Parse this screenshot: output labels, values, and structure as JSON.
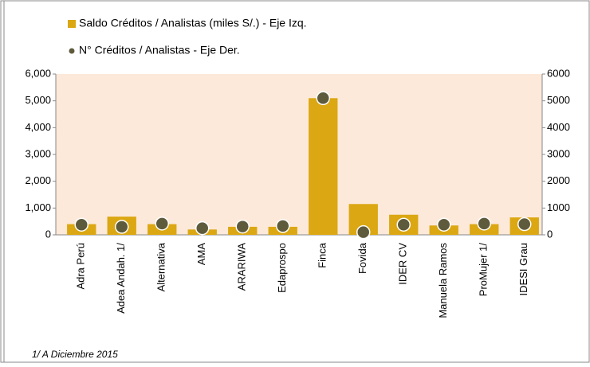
{
  "chart_data": {
    "type": "bar",
    "categories": [
      "Adra Perú",
      "Adea Andah. 1/",
      "Alternativa",
      "AMA",
      "ARARIWA",
      "Edaprospo",
      "Finca",
      "Fovida",
      "IDER CV",
      "Manuela Ramos",
      "ProMujer 1/",
      "IDESI Grau"
    ],
    "series": [
      {
        "name": "Saldo Créditos / Analistas (miles S/.) - Eje Izq.",
        "type": "bar",
        "color": "#dba712",
        "values": [
          400,
          680,
          400,
          200,
          300,
          300,
          5100,
          1150,
          750,
          350,
          400,
          650
        ]
      },
      {
        "name": "N° Créditos / Analistas - Eje Der.",
        "type": "scatter",
        "axis": "y2",
        "color": "#5e5a3c",
        "values": [
          380,
          300,
          420,
          250,
          310,
          330,
          5100,
          100,
          380,
          380,
          420,
          400
        ]
      }
    ],
    "ylim": [
      0,
      6000
    ],
    "yticks": [
      0,
      {
        "value": 1000,
        "label": "1,000"
      },
      {
        "value": 2000,
        "label": "2,000"
      },
      {
        "value": 3000,
        "label": "3,000"
      },
      {
        "value": 4000,
        "label": "4,000"
      },
      {
        "value": 5000,
        "label": "5,000"
      },
      {
        "value": 6000,
        "label": "6,000"
      }
    ],
    "y2lim": [
      0,
      6000
    ],
    "y2ticks": [
      0,
      1000,
      2000,
      3000,
      4000,
      5000,
      6000
    ],
    "grid": false,
    "legend": "top",
    "footnote": "1/ A Diciembre 2015"
  }
}
